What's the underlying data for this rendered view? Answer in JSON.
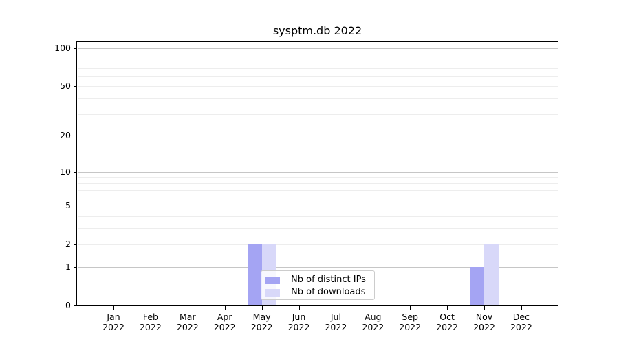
{
  "chart_data": {
    "type": "bar",
    "title": "sysptm.db 2022",
    "categories": [
      "Jan",
      "Feb",
      "Mar",
      "Apr",
      "May",
      "Jun",
      "Jul",
      "Aug",
      "Sep",
      "Oct",
      "Nov",
      "Dec"
    ],
    "year_label": "2022",
    "series": [
      {
        "name": "Nb of distinct IPs",
        "color": "#a4a4f3",
        "values": [
          0,
          0,
          0,
          0,
          2,
          0,
          0,
          0,
          0,
          0,
          1,
          0
        ]
      },
      {
        "name": "Nb of downloads",
        "color": "#d8d8f9",
        "values": [
          0,
          0,
          0,
          0,
          2,
          0,
          0,
          0,
          0,
          0,
          2,
          0
        ]
      }
    ],
    "y_scale": "log1p",
    "y_ticks": [
      0,
      1,
      2,
      5,
      10,
      20,
      50,
      100
    ],
    "grid_major": [
      1,
      10,
      100
    ],
    "grid_minor": [
      2,
      3,
      4,
      5,
      6,
      7,
      8,
      9,
      20,
      30,
      40,
      50,
      60,
      70,
      80,
      90
    ],
    "ylim": [
      0,
      112
    ],
    "xlabel": "",
    "ylabel": "",
    "grid": "horizontal",
    "legend_position": "inside-lower-center",
    "colors": {
      "grid_major": "#c6c6c6",
      "grid_minor": "#ededed",
      "axis": "#000000",
      "text": "#000000",
      "legend_border": "#cccccc"
    }
  }
}
